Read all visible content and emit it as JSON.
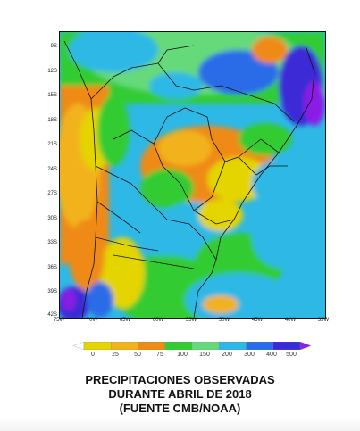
{
  "map": {
    "lat_labels": [
      "9S",
      "12S",
      "15S",
      "18S",
      "21S",
      "24S",
      "27S",
      "30S",
      "33S",
      "36S",
      "39S",
      "42S"
    ],
    "lon_labels": [
      "75W",
      "70W",
      "65W",
      "60W",
      "55W",
      "50W",
      "45W",
      "40W",
      "35W"
    ]
  },
  "legend": {
    "ticks": [
      "0",
      "25",
      "50",
      "75",
      "100",
      "150",
      "200",
      "300",
      "400",
      "500"
    ],
    "colors": [
      "#ffffff",
      "#e4d400",
      "#f2b21a",
      "#ef8a12",
      "#33cc33",
      "#66d97a",
      "#2eb8e6",
      "#2b6ce8",
      "#3a2ad6",
      "#8a1fe6"
    ]
  },
  "title": {
    "line1": "PRECIPITACIONES OBSERVADAS",
    "line2": "DURANTE ABRIL DE 2018",
    "line3": "(FUENTE CMB/NOAA)"
  }
}
